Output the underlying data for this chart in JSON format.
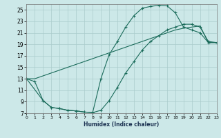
{
  "xlabel": "Humidex (Indice chaleur)",
  "bg_color": "#cce8e8",
  "grid_color": "#aacccc",
  "line_color": "#1a6b5a",
  "xlim": [
    0,
    23
  ],
  "ylim": [
    7,
    26
  ],
  "xticks": [
    0,
    1,
    2,
    3,
    4,
    5,
    6,
    7,
    8,
    9,
    10,
    11,
    12,
    13,
    14,
    15,
    16,
    17,
    18,
    19,
    20,
    21,
    22,
    23
  ],
  "yticks": [
    7,
    9,
    11,
    13,
    15,
    17,
    19,
    21,
    23,
    25
  ],
  "curve1_x": [
    0,
    1,
    2,
    3,
    4,
    5,
    6,
    7,
    8,
    9,
    10,
    11,
    12,
    13,
    14,
    15,
    16,
    17,
    18,
    19,
    20,
    21,
    22,
    23
  ],
  "curve1_y": [
    13.0,
    12.5,
    9.2,
    8.0,
    7.8,
    7.5,
    7.4,
    7.2,
    7.1,
    13.0,
    17.2,
    19.5,
    22.0,
    24.0,
    25.3,
    25.6,
    25.8,
    25.7,
    24.5,
    22.0,
    21.5,
    21.0,
    19.3,
    19.3
  ],
  "curve2_x": [
    0,
    1,
    2,
    3,
    4,
    5,
    6,
    7,
    8,
    9,
    10,
    11,
    12,
    13,
    14,
    15,
    16,
    17,
    18,
    19,
    20,
    21,
    22,
    23
  ],
  "curve2_y": [
    13.0,
    13.0,
    13.5,
    14.0,
    14.5,
    15.0,
    15.5,
    16.0,
    16.5,
    17.0,
    17.5,
    18.0,
    18.5,
    19.0,
    19.5,
    20.0,
    20.5,
    21.0,
    21.5,
    21.8,
    22.0,
    22.2,
    19.3,
    19.3
  ],
  "curve3_x": [
    0,
    2,
    3,
    4,
    5,
    6,
    7,
    8,
    9,
    10,
    11,
    12,
    13,
    14,
    15,
    16,
    17,
    18,
    19,
    20,
    21,
    22,
    23
  ],
  "curve3_y": [
    13.0,
    9.2,
    8.0,
    7.8,
    7.5,
    7.4,
    7.2,
    7.1,
    7.5,
    9.2,
    11.5,
    14.0,
    16.0,
    18.0,
    19.5,
    20.5,
    21.5,
    22.0,
    22.5,
    22.5,
    22.0,
    19.5,
    19.3
  ]
}
